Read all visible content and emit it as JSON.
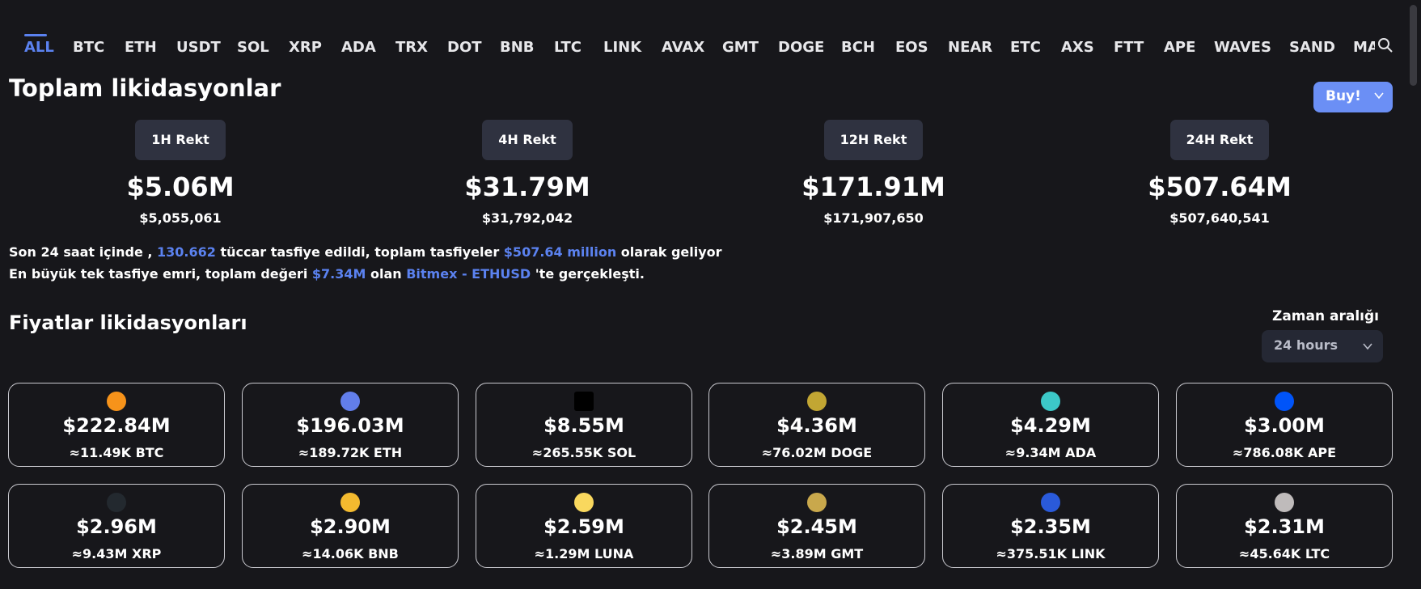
{
  "tabs": [
    "ALL",
    "BTC",
    "ETH",
    "USDT",
    "SOL",
    "XRP",
    "ADA",
    "TRX",
    "DOT",
    "BNB",
    "LTC",
    "LINK",
    "AVAX",
    "GMT",
    "DOGE",
    "BCH",
    "EOS",
    "NEAR",
    "ETC",
    "AXS",
    "FTT",
    "APE",
    "WAVES",
    "SAND",
    "MA"
  ],
  "active_tab": "ALL",
  "total_title": "Toplam likidasyonlar",
  "buy_button": "Buy!",
  "rekt": [
    {
      "label": "1H Rekt",
      "big": "$5.06M",
      "exact": "$5,055,061"
    },
    {
      "label": "4H Rekt",
      "big": "$31.79M",
      "exact": "$31,792,042"
    },
    {
      "label": "12H Rekt",
      "big": "$171.91M",
      "exact": "$171,907,650"
    },
    {
      "label": "24H Rekt",
      "big": "$507.64M",
      "exact": "$507,640,541"
    }
  ],
  "summary": {
    "l1_a": "Son 24 saat içinde , ",
    "l1_traders": "130.662",
    "l1_b": " tüccar tasfiye edildi, toplam tasfiyeler ",
    "l1_total": "$507.64 million",
    "l1_c": " olarak geliyor",
    "l2_a": "En büyük tek tasfiye emri, toplam değeri ",
    "l2_value": "$7.34M",
    "l2_b": " olan ",
    "l2_exchange": "Bitmex - ETHUSD",
    "l2_c": " 'te gerçekleşti."
  },
  "prices_title": "Fiyatlar likidasyonları",
  "time_range": {
    "label": "Zaman aralığı",
    "value": "24 hours"
  },
  "cards": [
    {
      "amount": "$222.84M",
      "sub": "≈11.49K BTC",
      "icon": "btc-icon",
      "color": "#f7931a"
    },
    {
      "amount": "$196.03M",
      "sub": "≈189.72K ETH",
      "icon": "eth-icon",
      "color": "#627eea"
    },
    {
      "amount": "$8.55M",
      "sub": "≈265.55K SOL",
      "icon": "sol-icon",
      "color": "#000000"
    },
    {
      "amount": "$4.36M",
      "sub": "≈76.02M DOGE",
      "icon": "doge-icon",
      "color": "#c2a633"
    },
    {
      "amount": "$4.29M",
      "sub": "≈9.34M ADA",
      "icon": "ada-icon",
      "color": "#3cc8c8"
    },
    {
      "amount": "$3.00M",
      "sub": "≈786.08K APE",
      "icon": "ape-icon",
      "color": "#0054f9"
    },
    {
      "amount": "$2.96M",
      "sub": "≈9.43M XRP",
      "icon": "xrp-icon",
      "color": "#23292f"
    },
    {
      "amount": "$2.90M",
      "sub": "≈14.06K BNB",
      "icon": "bnb-icon",
      "color": "#f3ba2f"
    },
    {
      "amount": "$2.59M",
      "sub": "≈1.29M LUNA",
      "icon": "luna-icon",
      "color": "#f9d85e"
    },
    {
      "amount": "$2.45M",
      "sub": "≈3.89M GMT",
      "icon": "gmt-icon",
      "color": "#c9a84c"
    },
    {
      "amount": "$2.35M",
      "sub": "≈375.51K LINK",
      "icon": "link-icon",
      "color": "#2a5ada"
    },
    {
      "amount": "$2.31M",
      "sub": "≈45.64K LTC",
      "icon": "ltc-icon",
      "color": "#bfbbbb"
    }
  ]
}
